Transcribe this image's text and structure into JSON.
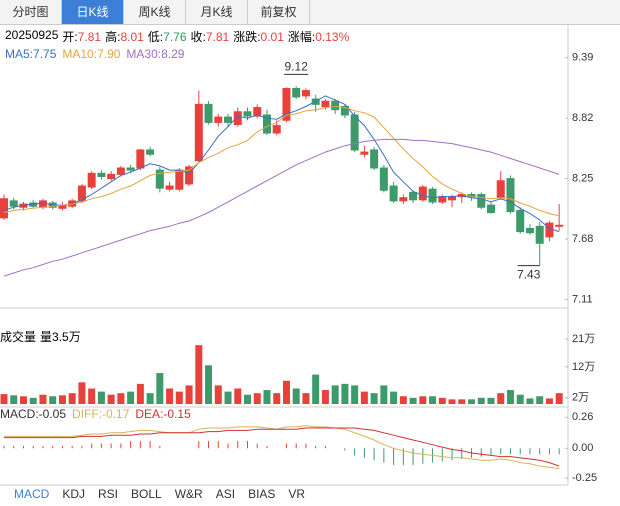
{
  "tabs": {
    "items": [
      "分时图",
      "日K线",
      "周K线",
      "月K线",
      "前复权"
    ],
    "selected": 1
  },
  "quote": {
    "date": "20250925",
    "items": [
      {
        "label": "开:",
        "value": 7.81,
        "color": "#e8413c"
      },
      {
        "label": "高:",
        "value": 8.01,
        "color": "#e8413c"
      },
      {
        "label": "低:",
        "value": 7.76,
        "color": "#2f9a5c"
      },
      {
        "label": "收:",
        "value": 7.81,
        "color": "#e8413c"
      },
      {
        "label": "涨跌:",
        "value": 0.01,
        "color": "#e8413c"
      },
      {
        "label": "涨幅:",
        "value": 0.13,
        "value_label": "0.13%",
        "color": "#e8413c"
      }
    ]
  },
  "chart_data": [
    {
      "type": "candlestick",
      "up_color": "#e8413c",
      "down_color": "#3d9a6a",
      "grid": false,
      "ylim": [
        7.03,
        9.67
      ],
      "yticks": [
        9.39,
        8.82,
        8.25,
        7.68,
        7.11
      ],
      "open": [
        7.88,
        8.04,
        7.98,
        8.02,
        7.98,
        8.02,
        7.97,
        7.99,
        8.04,
        8.17,
        8.3,
        8.25,
        8.29,
        8.35,
        8.35,
        8.52,
        8.33,
        8.15,
        8.15,
        8.2,
        8.42,
        8.95,
        8.78,
        8.83,
        8.76,
        8.88,
        8.84,
        8.85,
        8.68,
        8.8,
        9.1,
        9.03,
        9.0,
        8.93,
        8.98,
        8.93,
        8.85,
        8.48,
        8.52,
        8.35,
        8.18,
        8.04,
        8.12,
        8.05,
        8.15,
        8.03,
        8.05,
        8.08,
        8.1,
        8.1,
        8.0,
        8.07,
        8.25,
        7.95,
        7.78,
        7.8,
        7.7,
        7.81
      ],
      "high": [
        8.1,
        8.07,
        8.03,
        8.05,
        8.06,
        8.04,
        8.03,
        8.06,
        8.2,
        8.32,
        8.33,
        8.32,
        8.37,
        8.38,
        8.53,
        8.55,
        8.36,
        8.22,
        8.35,
        8.38,
        9.08,
        8.98,
        8.86,
        8.86,
        8.92,
        8.92,
        8.95,
        8.9,
        8.8,
        9.11,
        9.12,
        9.1,
        9.04,
        9.0,
        9.0,
        8.95,
        8.88,
        8.56,
        8.55,
        8.38,
        8.22,
        8.1,
        8.14,
        8.19,
        8.17,
        8.1,
        8.1,
        8.12,
        8.12,
        8.12,
        8.03,
        8.32,
        8.28,
        7.98,
        7.82,
        7.84,
        7.85,
        8.01
      ],
      "low": [
        7.86,
        7.96,
        7.95,
        7.97,
        7.96,
        7.96,
        7.95,
        7.97,
        8.02,
        8.15,
        8.24,
        8.23,
        8.27,
        8.3,
        8.33,
        8.46,
        8.12,
        8.13,
        8.13,
        8.18,
        8.4,
        8.76,
        8.74,
        8.74,
        8.74,
        8.8,
        8.82,
        8.66,
        8.66,
        8.78,
        9.0,
        9.0,
        8.88,
        8.9,
        8.86,
        8.82,
        8.5,
        8.45,
        8.33,
        8.12,
        8.02,
        8.01,
        8.02,
        8.03,
        8.01,
        8.01,
        7.98,
        8.02,
        8.04,
        7.96,
        7.92,
        8.05,
        7.92,
        7.73,
        7.72,
        7.43,
        7.66,
        7.76
      ],
      "close": [
        8.06,
        7.99,
        8.01,
        7.99,
        8.04,
        7.98,
        8.0,
        8.04,
        8.18,
        8.3,
        8.27,
        8.29,
        8.35,
        8.33,
        8.52,
        8.48,
        8.16,
        8.18,
        8.33,
        8.36,
        8.95,
        8.78,
        8.83,
        8.78,
        8.88,
        8.84,
        8.92,
        8.68,
        8.75,
        9.1,
        9.02,
        9.08,
        8.95,
        8.98,
        8.9,
        8.85,
        8.52,
        8.5,
        8.35,
        8.14,
        8.04,
        8.07,
        8.05,
        8.17,
        8.03,
        8.08,
        8.08,
        8.1,
        8.08,
        7.98,
        7.93,
        8.23,
        7.94,
        7.75,
        7.74,
        7.64,
        7.83,
        7.81
      ],
      "series": [
        {
          "name": "MA5:",
          "color": "#3a6fc4",
          "last_label": "7.75",
          "values": [
            7.95,
            7.98,
            8.0,
            8.01,
            8.02,
            8.0,
            8.0,
            8.01,
            8.05,
            8.1,
            8.16,
            8.22,
            8.28,
            8.31,
            8.35,
            8.39,
            8.37,
            8.33,
            8.33,
            8.3,
            8.4,
            8.52,
            8.65,
            8.74,
            8.84,
            8.82,
            8.85,
            8.82,
            8.81,
            8.86,
            8.89,
            8.93,
            8.98,
            9.03,
            8.99,
            8.95,
            8.84,
            8.75,
            8.62,
            8.47,
            8.31,
            8.22,
            8.13,
            8.09,
            8.07,
            8.08,
            8.08,
            8.09,
            8.07,
            8.06,
            8.03,
            8.06,
            8.03,
            7.97,
            7.92,
            7.86,
            7.78,
            7.75
          ]
        },
        {
          "name": "MA10:",
          "color": "#e3a445",
          "last_label": "7.90",
          "values": [
            7.93,
            7.95,
            7.96,
            7.97,
            7.98,
            7.99,
            8.0,
            8.01,
            8.03,
            8.06,
            8.08,
            8.11,
            8.15,
            8.18,
            8.23,
            8.28,
            8.3,
            8.31,
            8.32,
            8.33,
            8.4,
            8.45,
            8.49,
            8.54,
            8.57,
            8.61,
            8.69,
            8.74,
            8.78,
            8.85,
            8.86,
            8.89,
            8.9,
            8.92,
            8.93,
            8.92,
            8.89,
            8.87,
            8.83,
            8.73,
            8.63,
            8.53,
            8.44,
            8.36,
            8.27,
            8.2,
            8.15,
            8.11,
            8.08,
            8.07,
            8.06,
            8.07,
            8.06,
            8.02,
            7.99,
            7.95,
            7.92,
            7.9
          ]
        },
        {
          "name": "MA30:",
          "color": "#a070c4",
          "last_label": "8.29",
          "values": [
            7.33,
            7.36,
            7.39,
            7.41,
            7.44,
            7.47,
            7.49,
            7.52,
            7.55,
            7.58,
            7.61,
            7.64,
            7.67,
            7.7,
            7.73,
            7.76,
            7.78,
            7.8,
            7.83,
            7.85,
            7.89,
            7.93,
            7.98,
            8.03,
            8.08,
            8.13,
            8.18,
            8.23,
            8.28,
            8.33,
            8.38,
            8.42,
            8.46,
            8.5,
            8.53,
            8.56,
            8.58,
            8.6,
            8.61,
            8.62,
            8.62,
            8.62,
            8.61,
            8.61,
            8.6,
            8.59,
            8.58,
            8.56,
            8.54,
            8.52,
            8.5,
            8.47,
            8.44,
            8.41,
            8.38,
            8.35,
            8.32,
            8.29
          ]
        }
      ]
    },
    {
      "type": "bar",
      "title": "成交量",
      "legend_name": "量",
      "legend_value_label": "3.5万",
      "ylim": [
        0,
        23.9
      ],
      "yticks": [
        {
          "value": 21,
          "label": "21万"
        },
        {
          "value": 12,
          "label": "12万"
        },
        {
          "value": 2,
          "label": "2万"
        }
      ],
      "values": [
        3.2,
        2.8,
        2.5,
        2.0,
        3.0,
        2.5,
        2.8,
        3.5,
        7.0,
        5.0,
        4.0,
        3.0,
        3.5,
        4.0,
        6.5,
        3.5,
        10.0,
        5.0,
        4.0,
        6.0,
        19.0,
        12.5,
        6.0,
        4.0,
        5.0,
        3.0,
        3.5,
        4.5,
        3.5,
        7.5,
        5.0,
        3.5,
        9.5,
        4.5,
        6.0,
        6.5,
        6.0,
        4.0,
        3.5,
        6.0,
        4.0,
        2.5,
        2.0,
        2.5,
        2.5,
        2.0,
        1.5,
        1.5,
        1.5,
        2.0,
        2.0,
        3.5,
        4.5,
        3.0,
        1.8,
        2.5,
        1.8,
        3.5
      ]
    },
    {
      "type": "macd",
      "ylim": [
        -0.3,
        0.33
      ],
      "yticks": [
        0.26,
        {
          "value": 0,
          "label": "0.00"
        },
        -0.25
      ],
      "bars": {
        "name": "MACD:",
        "color": "#333333",
        "last_label": "-0.05",
        "values": [
          0.02,
          0.02,
          0.02,
          0.02,
          0.02,
          0.02,
          0.02,
          0.02,
          0.02,
          0.04,
          0.04,
          0.04,
          0.04,
          0.06,
          0.06,
          0.06,
          0.02,
          0,
          0,
          0,
          0.06,
          0.06,
          0.06,
          0.04,
          0.06,
          0.06,
          0.04,
          0.02,
          0,
          0.04,
          0.04,
          0.04,
          0.02,
          0.02,
          0,
          -0.02,
          -0.06,
          -0.08,
          -0.1,
          -0.12,
          -0.14,
          -0.14,
          -0.14,
          -0.13,
          -0.12,
          -0.11,
          -0.1,
          -0.09,
          -0.08,
          -0.07,
          -0.06,
          -0.05,
          -0.05,
          -0.05,
          -0.05,
          -0.05,
          -0.05,
          -0.05
        ]
      },
      "series": [
        {
          "name": "DIFF:",
          "color": "#d9b25a",
          "last_label": "-0.17",
          "values": [
            0.1,
            0.1,
            0.1,
            0.1,
            0.1,
            0.1,
            0.1,
            0.1,
            0.11,
            0.12,
            0.12,
            0.13,
            0.13,
            0.14,
            0.15,
            0.15,
            0.14,
            0.13,
            0.13,
            0.13,
            0.16,
            0.17,
            0.17,
            0.17,
            0.18,
            0.18,
            0.18,
            0.17,
            0.16,
            0.18,
            0.18,
            0.19,
            0.18,
            0.18,
            0.17,
            0.16,
            0.13,
            0.1,
            0.07,
            0.03,
            0,
            -0.02,
            -0.04,
            -0.05,
            -0.06,
            -0.07,
            -0.08,
            -0.08,
            -0.09,
            -0.1,
            -0.1,
            -0.09,
            -0.1,
            -0.12,
            -0.13,
            -0.15,
            -0.16,
            -0.17
          ]
        },
        {
          "name": "DEA:",
          "color": "#d03030",
          "last_label": "-0.15",
          "values": [
            0.09,
            0.09,
            0.09,
            0.09,
            0.09,
            0.09,
            0.09,
            0.09,
            0.1,
            0.1,
            0.1,
            0.11,
            0.11,
            0.11,
            0.12,
            0.12,
            0.13,
            0.13,
            0.13,
            0.13,
            0.13,
            0.14,
            0.14,
            0.15,
            0.15,
            0.15,
            0.16,
            0.16,
            0.16,
            0.16,
            0.16,
            0.17,
            0.17,
            0.17,
            0.17,
            0.17,
            0.17,
            0.16,
            0.15,
            0.13,
            0.11,
            0.09,
            0.07,
            0.05,
            0.03,
            0.01,
            -0.01,
            -0.02,
            -0.04,
            -0.05,
            -0.06,
            -0.07,
            -0.07,
            -0.08,
            -0.09,
            -0.1,
            -0.12,
            -0.15
          ]
        }
      ]
    }
  ],
  "indicator_tabs": {
    "items": [
      "MACD",
      "KDJ",
      "RSI",
      "BOLL",
      "W&R",
      "ASI",
      "BIAS",
      "VR"
    ],
    "selected": 0
  }
}
